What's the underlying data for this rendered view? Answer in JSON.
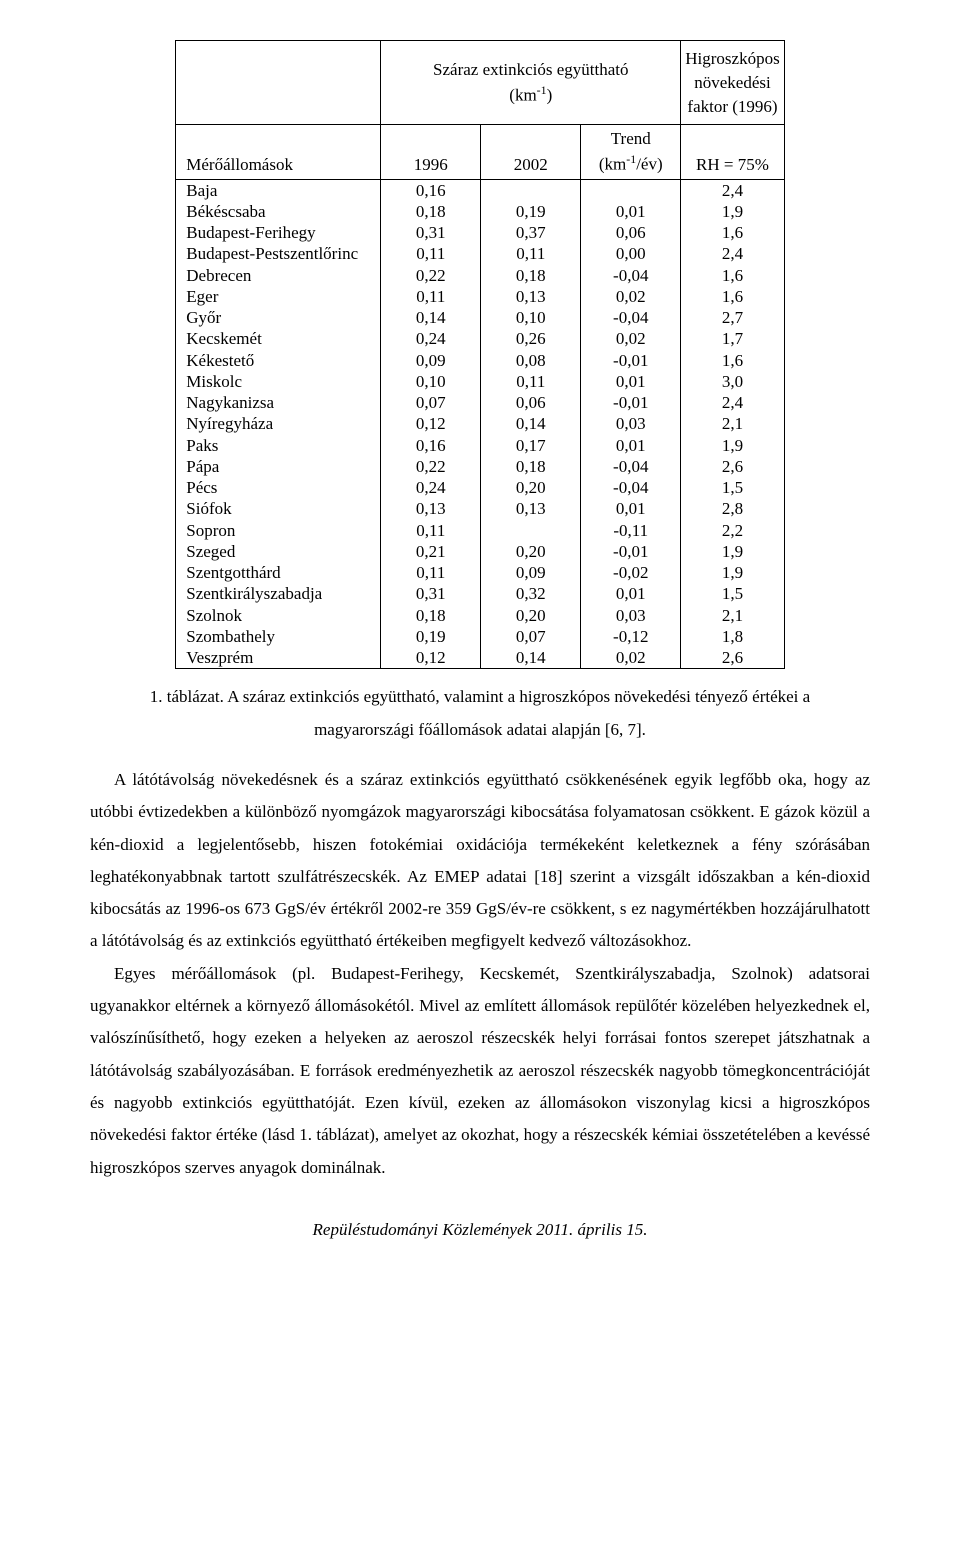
{
  "table": {
    "header_group_left_line1": "Száraz extinkciós együttható",
    "header_group_left_line2_pre": "(km",
    "header_group_left_line2_sup": "-1",
    "header_group_left_line2_post": ")",
    "header_group_right_line1": "Higroszkópos",
    "header_group_right_line2": "növekedési",
    "header_group_right_line3": "faktor (1996)",
    "header_stations": "Mérőállomások",
    "header_1996": "1996",
    "header_2002": "2002",
    "header_trend_line1": "Trend",
    "header_trend_line2_pre": "(km",
    "header_trend_line2_sup": "-1",
    "header_trend_line2_post": "/év)",
    "header_rh": "RH = 75%",
    "columns": [
      "station",
      "v1996",
      "v2002",
      "trend",
      "rh"
    ],
    "rows": [
      {
        "station": "Baja",
        "v1996": "0,16",
        "v2002": "",
        "trend": "",
        "rh": "2,4"
      },
      {
        "station": "Békéscsaba",
        "v1996": "0,18",
        "v2002": "0,19",
        "trend": "0,01",
        "rh": "1,9"
      },
      {
        "station": "Budapest-Ferihegy",
        "v1996": "0,31",
        "v2002": "0,37",
        "trend": "0,06",
        "rh": "1,6"
      },
      {
        "station": "Budapest-Pestszentlőrinc",
        "v1996": "0,11",
        "v2002": "0,11",
        "trend": "0,00",
        "rh": "2,4"
      },
      {
        "station": "Debrecen",
        "v1996": "0,22",
        "v2002": "0,18",
        "trend": "-0,04",
        "rh": "1,6"
      },
      {
        "station": "Eger",
        "v1996": "0,11",
        "v2002": "0,13",
        "trend": "0,02",
        "rh": "1,6"
      },
      {
        "station": "Győr",
        "v1996": "0,14",
        "v2002": "0,10",
        "trend": "-0,04",
        "rh": "2,7"
      },
      {
        "station": "Kecskemét",
        "v1996": "0,24",
        "v2002": "0,26",
        "trend": "0,02",
        "rh": "1,7"
      },
      {
        "station": "Kékestető",
        "v1996": "0,09",
        "v2002": "0,08",
        "trend": "-0,01",
        "rh": "1,6"
      },
      {
        "station": "Miskolc",
        "v1996": "0,10",
        "v2002": "0,11",
        "trend": "0,01",
        "rh": "3,0"
      },
      {
        "station": "Nagykanizsa",
        "v1996": "0,07",
        "v2002": "0,06",
        "trend": "-0,01",
        "rh": "2,4"
      },
      {
        "station": "Nyíregyháza",
        "v1996": "0,12",
        "v2002": "0,14",
        "trend": "0,03",
        "rh": "2,1"
      },
      {
        "station": "Paks",
        "v1996": "0,16",
        "v2002": "0,17",
        "trend": "0,01",
        "rh": "1,9"
      },
      {
        "station": "Pápa",
        "v1996": "0,22",
        "v2002": "0,18",
        "trend": "-0,04",
        "rh": "2,6"
      },
      {
        "station": "Pécs",
        "v1996": "0,24",
        "v2002": "0,20",
        "trend": "-0,04",
        "rh": "1,5"
      },
      {
        "station": "Siófok",
        "v1996": "0,13",
        "v2002": "0,13",
        "trend": "0,01",
        "rh": "2,8"
      },
      {
        "station": "Sopron",
        "v1996": "0,11",
        "v2002": "",
        "trend": "-0,11",
        "rh": "2,2"
      },
      {
        "station": "Szeged",
        "v1996": "0,21",
        "v2002": "0,20",
        "trend": "-0,01",
        "rh": "1,9"
      },
      {
        "station": "Szentgotthárd",
        "v1996": "0,11",
        "v2002": "0,09",
        "trend": "-0,02",
        "rh": "1,9"
      },
      {
        "station": "Szentkirályszabadja",
        "v1996": "0,31",
        "v2002": "0,32",
        "trend": "0,01",
        "rh": "1,5"
      },
      {
        "station": "Szolnok",
        "v1996": "0,18",
        "v2002": "0,20",
        "trend": "0,03",
        "rh": "2,1"
      },
      {
        "station": "Szombathely",
        "v1996": "0,19",
        "v2002": "0,07",
        "trend": "-0,12",
        "rh": "1,8"
      },
      {
        "station": "Veszprém",
        "v1996": "0,12",
        "v2002": "0,14",
        "trend": "0,02",
        "rh": "2,6"
      }
    ]
  },
  "caption": "1. táblázat. A száraz extinkciós együttható, valamint a higroszkópos növekedési tényező értékei a magyarországi főállomások adatai alapján [6, 7].",
  "para1": "A látótávolság növekedésnek és a száraz extinkciós együttható csökkenésének egyik legfőbb oka, hogy az utóbbi évtizedekben a különböző nyomgázok magyarországi kibocsátása folyamatosan csökkent. E gázok közül a kén-dioxid a legjelentősebb, hiszen fotokémiai oxidációja termékeként keletkeznek a fény szórásában leghatékonyabbnak tartott szulfátrészecskék. Az EMEP adatai [18] szerint a vizsgált időszakban a kén-dioxid kibocsátás az 1996-os 673 GgS/év értékről 2002-re 359 GgS/év-re csökkent, s ez nagymértékben hozzájárulhatott a látótávolság és az extinkciós együttható értékeiben megfigyelt kedvező változásokhoz.",
  "para2": "Egyes mérőállomások (pl. Budapest-Ferihegy, Kecskemét, Szentkirályszabadja, Szolnok) adatsorai ugyanakkor eltérnek a környező állomásokétól. Mivel az említett állomások repülőtér közelében helyezkednek el, valószínűsíthető, hogy ezeken a helyeken az aeroszol részecskék helyi forrásai fontos szerepet játszhatnak a látótávolság szabályozásában. E források eredményezhetik az aeroszol részecskék nagyobb tömegkoncentrációját és nagyobb extinkciós együtthatóját. Ezen kívül, ezeken az állomásokon viszonylag kicsi a higroszkópos növekedési faktor értéke (lásd 1. táblázat), amelyet az okozhat, hogy a részecskék kémiai összetételében a kevéssé higroszkópos szerves anyagok dominálnak.",
  "footer": "Repüléstudományi Közlemények 2011. április 15."
}
